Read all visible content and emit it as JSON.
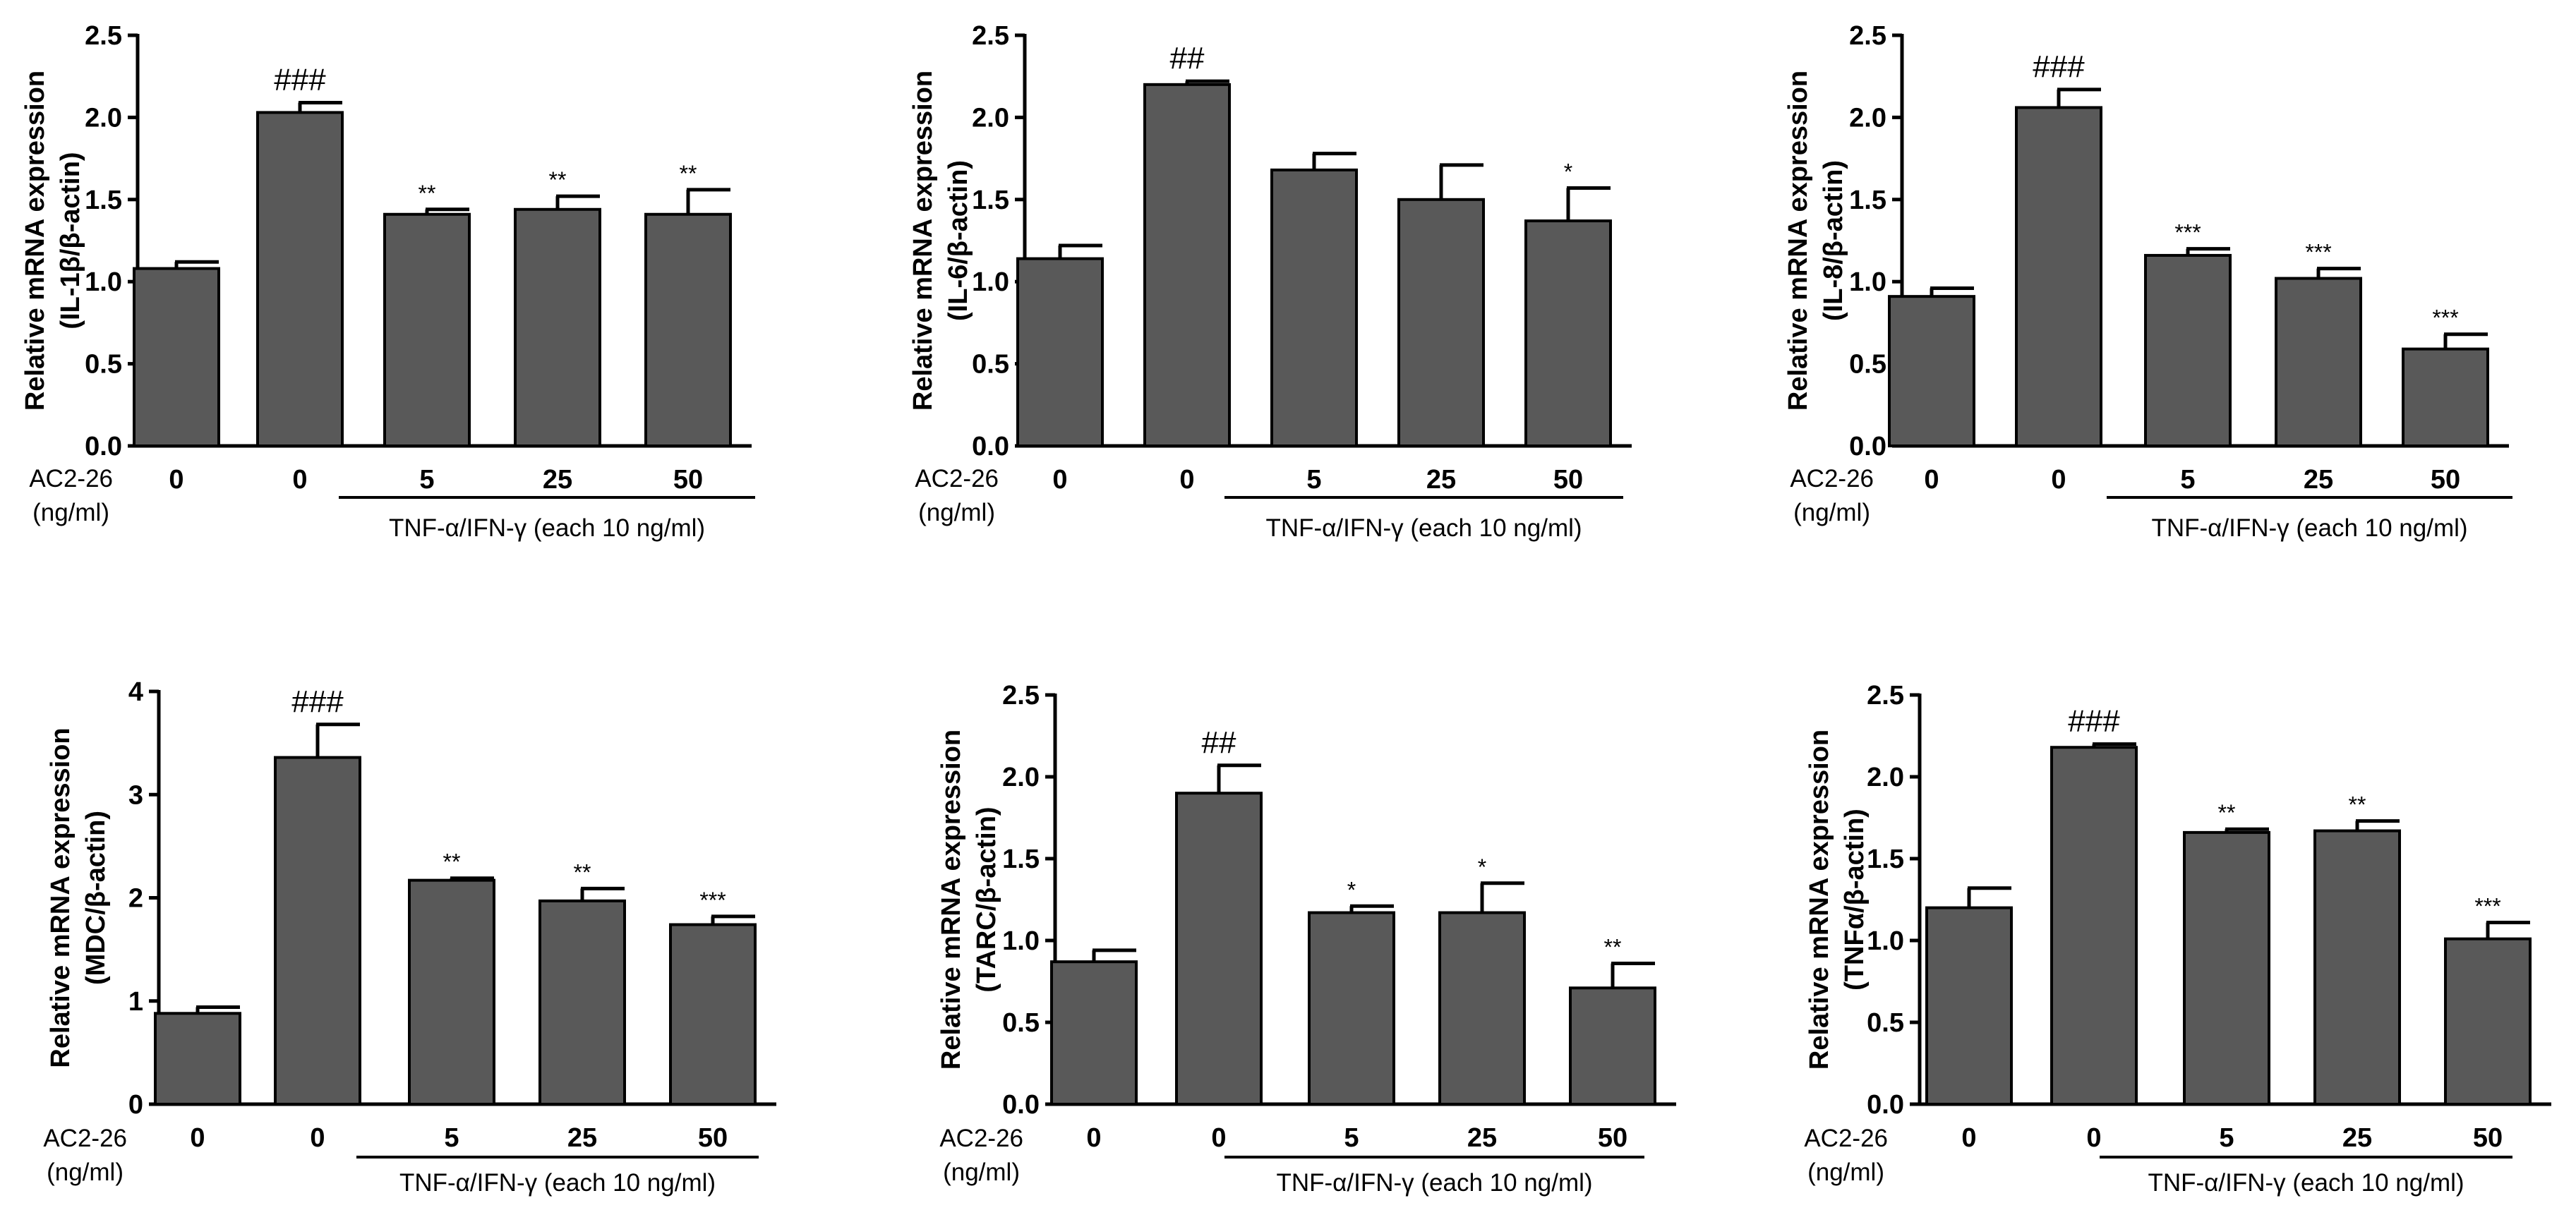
{
  "treatment_label": "TNF-α/IFN-γ (each 10 ng/ml)",
  "ac_label_line1": "AC2-26",
  "ac_label_line2": "(ng/ml)",
  "categories": [
    "0",
    "0",
    "5",
    "25",
    "50"
  ],
  "chart_data": [
    {
      "type": "bar",
      "id": "il1b",
      "ylabel_line1": "Relative mRNA expression",
      "ylabel_line2": "(IL-1β/β-actin)",
      "ylim": [
        0,
        2.5
      ],
      "yticks": [
        "0.0",
        "0.5",
        "1.0",
        "1.5",
        "2.0",
        "2.5"
      ],
      "categories": [
        "0",
        "0",
        "5",
        "25",
        "50"
      ],
      "values": [
        1.08,
        2.03,
        1.41,
        1.44,
        1.41
      ],
      "errors": [
        0.04,
        0.06,
        0.03,
        0.08,
        0.15
      ],
      "annotations": [
        "",
        "###",
        "**",
        "**",
        "**"
      ]
    },
    {
      "type": "bar",
      "id": "il6",
      "ylabel_line1": "Relative mRNA expression",
      "ylabel_line2": "(IL-6/β-actin)",
      "ylim": [
        0,
        2.5
      ],
      "yticks": [
        "0.0",
        "0.5",
        "1.0",
        "1.5",
        "2.0",
        "2.5"
      ],
      "categories": [
        "0",
        "0",
        "5",
        "25",
        "50"
      ],
      "values": [
        1.14,
        2.2,
        1.68,
        1.5,
        1.37
      ],
      "errors": [
        0.08,
        0.02,
        0.1,
        0.21,
        0.2
      ],
      "annotations": [
        "",
        "##",
        "",
        "",
        "*"
      ]
    },
    {
      "type": "bar",
      "id": "il8",
      "ylabel_line1": "Relative mRNA expression",
      "ylabel_line2": "(IL-8/β-actin)",
      "ylim": [
        0,
        2.5
      ],
      "yticks": [
        "0.0",
        "0.5",
        "1.0",
        "1.5",
        "2.0",
        "2.5"
      ],
      "categories": [
        "0",
        "0",
        "5",
        "25",
        "50"
      ],
      "values": [
        0.91,
        2.06,
        1.16,
        1.02,
        0.59
      ],
      "errors": [
        0.05,
        0.11,
        0.04,
        0.06,
        0.09
      ],
      "annotations": [
        "",
        "###",
        "***",
        "***",
        "***"
      ]
    },
    {
      "type": "bar",
      "id": "mdc",
      "ylabel_line1": "Relative mRNA expression",
      "ylabel_line2": "(MDC/β-actin)",
      "ylim": [
        0,
        4
      ],
      "yticks": [
        "0",
        "1",
        "2",
        "3",
        "4"
      ],
      "categories": [
        "0",
        "0",
        "5",
        "25",
        "50"
      ],
      "values": [
        0.88,
        3.36,
        2.17,
        1.97,
        1.74
      ],
      "errors": [
        0.06,
        0.32,
        0.02,
        0.12,
        0.08
      ],
      "annotations": [
        "",
        "###",
        "**",
        "**",
        "***"
      ]
    },
    {
      "type": "bar",
      "id": "tarc",
      "ylabel_line1": "Relative mRNA expression",
      "ylabel_line2": "(TARC/β-actin)",
      "ylim": [
        0,
        2.5
      ],
      "yticks": [
        "0.0",
        "0.5",
        "1.0",
        "1.5",
        "2.0",
        "2.5"
      ],
      "categories": [
        "0",
        "0",
        "5",
        "25",
        "50"
      ],
      "values": [
        0.87,
        1.9,
        1.17,
        1.17,
        0.71
      ],
      "errors": [
        0.07,
        0.17,
        0.04,
        0.18,
        0.15
      ],
      "annotations": [
        "",
        "##",
        "*",
        "*",
        "**"
      ]
    },
    {
      "type": "bar",
      "id": "tnfa",
      "ylabel_line1": "Relative mRNA expression",
      "ylabel_line2": "(TNFα/β-actin)",
      "ylim": [
        0,
        2.5
      ],
      "yticks": [
        "0.0",
        "0.5",
        "1.0",
        "1.5",
        "2.0",
        "2.5"
      ],
      "categories": [
        "0",
        "0",
        "5",
        "25",
        "50"
      ],
      "values": [
        1.2,
        2.18,
        1.66,
        1.67,
        1.01
      ],
      "errors": [
        0.12,
        0.02,
        0.02,
        0.06,
        0.1
      ],
      "annotations": [
        "",
        "###",
        "**",
        "**",
        "***"
      ]
    }
  ]
}
